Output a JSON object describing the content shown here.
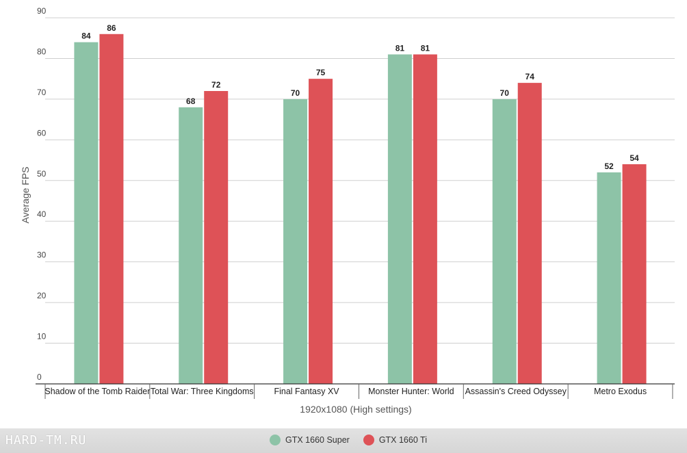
{
  "chart_data": {
    "type": "bar",
    "xlabel": "1920x1080 (High settings)",
    "ylabel": "Average FPS",
    "ylim": [
      0,
      90
    ],
    "yticks": [
      0,
      10,
      20,
      30,
      40,
      50,
      60,
      70,
      80,
      90
    ],
    "grid": true,
    "legend_position": "bottom",
    "categories": [
      "Shadow of the Tomb Raider",
      "Total War: Three Kingdoms",
      "Final Fantasy XV",
      "Monster Hunter: World",
      "Assassin's Creed Odyssey",
      "Metro Exodus"
    ],
    "series": [
      {
        "name": "GTX 1660 Super",
        "color": "#8dc3a7",
        "values": [
          84,
          68,
          70,
          81,
          70,
          52
        ]
      },
      {
        "name": "GTX 1660 Ti",
        "color": "#de5257",
        "values": [
          86,
          72,
          75,
          81,
          74,
          54
        ]
      }
    ]
  },
  "watermark": "HARD-TM.RU"
}
